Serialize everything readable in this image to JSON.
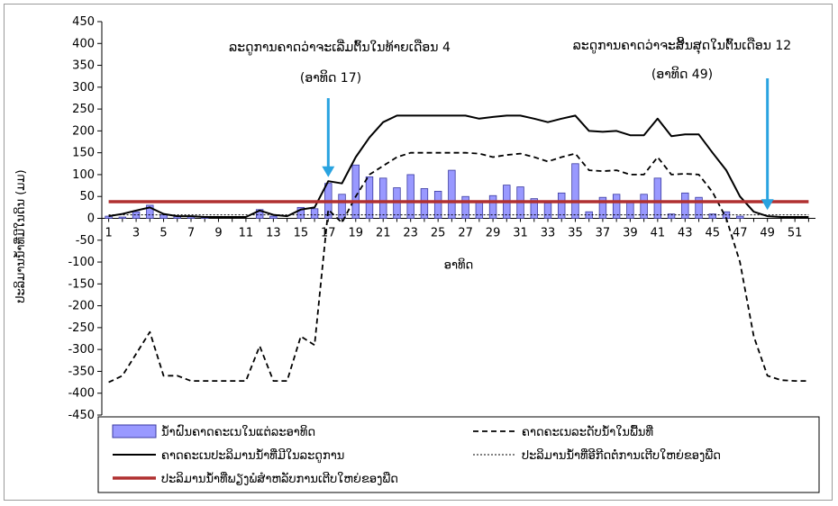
{
  "chart_data": {
    "type": "bar",
    "title": "",
    "xlabel": "ອາທິດ",
    "ylabel": "ປະລິມານນ້ຳທີ່ມີໃນດິນ (ມມ)",
    "ylim": [
      -450,
      450
    ],
    "xlim": [
      1,
      52
    ],
    "yticks": [
      -450,
      -400,
      -350,
      -300,
      -250,
      -200,
      -150,
      -100,
      -50,
      0,
      50,
      100,
      150,
      200,
      250,
      300,
      350,
      400,
      450
    ],
    "xticks": [
      1,
      3,
      5,
      7,
      9,
      11,
      13,
      15,
      17,
      19,
      21,
      23,
      25,
      27,
      29,
      31,
      33,
      35,
      37,
      39,
      41,
      43,
      45,
      47,
      49,
      51
    ],
    "grid": false,
    "legend_position": "bottom",
    "x": [
      1,
      2,
      3,
      4,
      5,
      6,
      7,
      8,
      9,
      10,
      11,
      12,
      13,
      14,
      15,
      16,
      17,
      18,
      19,
      20,
      21,
      22,
      23,
      24,
      25,
      26,
      27,
      28,
      29,
      30,
      31,
      32,
      33,
      34,
      35,
      36,
      37,
      38,
      39,
      40,
      41,
      42,
      43,
      44,
      45,
      46,
      47,
      48,
      49,
      50,
      51,
      52
    ],
    "series": [
      {
        "name": "ນ້ຳຝົນຄາດຄະເນໃນແຕ່ລະອາທິດ",
        "kind": "bar",
        "color": "#9999ff",
        "values": [
          5,
          3,
          15,
          30,
          8,
          5,
          5,
          2,
          0,
          0,
          0,
          20,
          5,
          0,
          25,
          22,
          80,
          55,
          122,
          95,
          92,
          70,
          100,
          68,
          62,
          110,
          50,
          38,
          52,
          76,
          72,
          45,
          35,
          58,
          125,
          15,
          48,
          55,
          40,
          55,
          92,
          10,
          58,
          48,
          10,
          15,
          5,
          0,
          0,
          0,
          0,
          0
        ]
      },
      {
        "name": "ຄາດຄະເນລະດັບນ້ຳໃນພື້ນທີ່",
        "kind": "line",
        "style": "dashed",
        "color": "#000000",
        "values": [
          -375,
          -360,
          -310,
          -260,
          -360,
          -360,
          -372,
          -372,
          -372,
          -372,
          -372,
          -292,
          -372,
          -372,
          -270,
          -290,
          20,
          -10,
          50,
          100,
          120,
          140,
          150,
          150,
          150,
          150,
          150,
          148,
          140,
          145,
          148,
          140,
          130,
          140,
          148,
          110,
          108,
          110,
          100,
          100,
          140,
          100,
          102,
          100,
          60,
          0,
          -100,
          -270,
          -360,
          -370,
          -372,
          -372
        ]
      },
      {
        "name": "ຄາດຄະເນປະລິມານນ້ຳທີ່ມີໃນລະດູການ",
        "kind": "line",
        "style": "solid",
        "color": "#000000",
        "values": [
          5,
          10,
          18,
          25,
          10,
          5,
          5,
          3,
          3,
          3,
          3,
          18,
          8,
          5,
          20,
          25,
          85,
          80,
          140,
          185,
          220,
          235,
          235,
          235,
          235,
          235,
          235,
          228,
          232,
          235,
          235,
          228,
          220,
          228,
          235,
          200,
          198,
          200,
          190,
          190,
          228,
          188,
          192,
          192,
          150,
          110,
          50,
          15,
          5,
          3,
          3,
          3
        ]
      },
      {
        "name": "ປະລິມານນ້ຳທີ່ອີກີດຕໍ່ການເຕີບໃຫຍ່ຂອງພືດ",
        "kind": "line",
        "style": "dotted",
        "color": "#000000",
        "values": [
          8,
          8,
          8,
          8,
          8,
          8,
          8,
          8,
          8,
          8,
          8,
          8,
          8,
          8,
          8,
          8,
          8,
          8,
          8,
          8,
          8,
          8,
          8,
          8,
          8,
          8,
          8,
          8,
          8,
          8,
          8,
          8,
          8,
          8,
          8,
          8,
          8,
          8,
          8,
          8,
          8,
          8,
          8,
          8,
          8,
          8,
          8,
          8,
          8,
          8,
          8,
          8
        ]
      },
      {
        "name": "ປະລິມານນ້ຳທີ່ພຽງພໍສຳຫລັບການເຕີບໃຫຍ່ຂອງພືດ",
        "kind": "line",
        "style": "thick",
        "color": "#b03030",
        "values": [
          38,
          38,
          38,
          38,
          38,
          38,
          38,
          38,
          38,
          38,
          38,
          38,
          38,
          38,
          38,
          38,
          38,
          38,
          38,
          38,
          38,
          38,
          38,
          38,
          38,
          38,
          38,
          38,
          38,
          38,
          38,
          38,
          38,
          38,
          38,
          38,
          38,
          38,
          38,
          38,
          38,
          38,
          38,
          38,
          38,
          38,
          38,
          38,
          38,
          38,
          38,
          38
        ]
      }
    ],
    "annotations": [
      {
        "week": 17,
        "value": 90,
        "line1": "ລະດູການຄາດວ່າຈະເລີ່ມຕົ້ນໃນທ້າຍເດືອນ 4",
        "line2": "(ອາທິດ 17)",
        "arrow_color": "#29a3e0"
      },
      {
        "week": 49,
        "value": 15,
        "line1": "ລະດູການຄາດວ່າຈະສິ້ນສຸດໃນຕົ້ນເດືອນ 12",
        "line2": "(ອາທິດ 49)",
        "arrow_color": "#29a3e0"
      }
    ]
  }
}
